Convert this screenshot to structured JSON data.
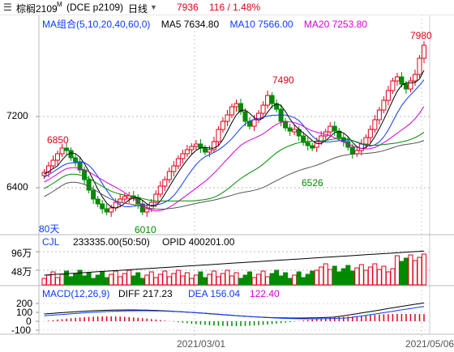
{
  "header": {
    "menu_icon": "hamburger-icon",
    "name": "棕榈2109",
    "superscript": "M",
    "contract": "(DCE p2109)",
    "period": "日线",
    "period_icon": "dropdown-arrow-icon",
    "price": "7936",
    "change": "116 / 1.48%"
  },
  "ma": {
    "combo": "MA组合(5,10,20,40,60,0)",
    "ma5": "MA5 7634.80",
    "ma10": "MA10 7566.00",
    "ma20": "MA20 7253.80"
  },
  "main_axis": {
    "ticks": [
      "7200",
      "6400"
    ],
    "levels": [
      7200,
      6400
    ]
  },
  "annotations": {
    "high": "7980",
    "p7490": "7490",
    "p6850": "6850",
    "p6526": "6526",
    "p6010": "6010",
    "days": "80天"
  },
  "volume": {
    "label": "CJL",
    "values": "233335.00(50:50)",
    "opid": "OPID 400201.00",
    "ticks": [
      "96万",
      "48万"
    ]
  },
  "macd": {
    "label": "MACD(12,26,9)",
    "diff": "DIFF 217.23",
    "dea": "DEA 156.04",
    "value": "122.40",
    "ticks": [
      "200",
      "100",
      "0",
      "-100"
    ]
  },
  "xaxis": {
    "dates": [
      "2021/03/01",
      "2021/05/06"
    ]
  },
  "colors": {
    "up": "#e0001b",
    "down": "#008a00",
    "ma5": "#000000",
    "ma10": "#0b3bff",
    "ma20": "#d600d6",
    "ma40": "#008a00",
    "ma60": "#555555"
  }
}
